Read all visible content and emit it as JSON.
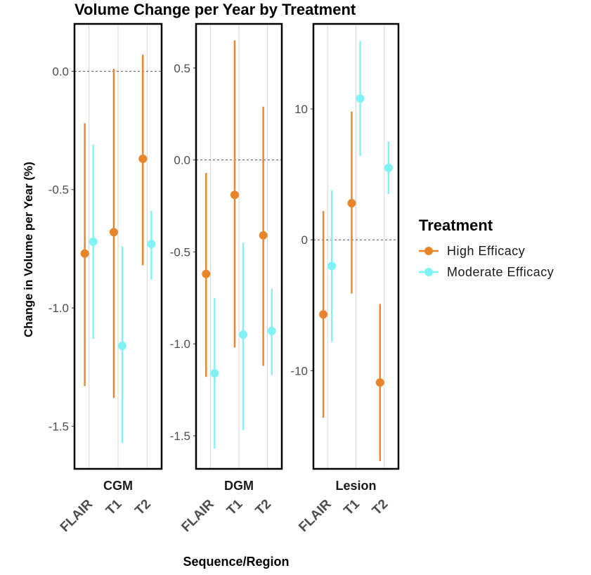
{
  "chart_data": {
    "type": "errorbar",
    "title": "Volume Change per Year by Treatment",
    "xlabel": "Sequence/Region",
    "ylabel": "Change in Volume per Year (%)",
    "sequences": [
      "FLAIR",
      "T1",
      "T2"
    ],
    "legend": {
      "title": "Treatment",
      "position": "right",
      "entries": [
        {
          "name": "High  Efficacy",
          "color": "#e8842a"
        },
        {
          "name": "Moderate  Efficacy",
          "color": "#7ff2f5"
        }
      ]
    },
    "panels": [
      {
        "region": "CGM",
        "ylim": [
          -1.68,
          0.2
        ],
        "yticks": [
          0.0,
          -0.5,
          -1.0,
          -1.5
        ],
        "ytick_labels": [
          "0.0",
          "-0.5",
          "-1.0",
          "-1.5"
        ],
        "series": [
          {
            "name": "High  Efficacy",
            "points": [
              {
                "x": "FLAIR",
                "estimate": -0.77,
                "lower": -1.33,
                "upper": -0.22
              },
              {
                "x": "T1",
                "estimate": -0.68,
                "lower": -1.38,
                "upper": 0.01
              },
              {
                "x": "T2",
                "estimate": -0.37,
                "lower": -0.82,
                "upper": 0.07
              }
            ]
          },
          {
            "name": "Moderate  Efficacy",
            "points": [
              {
                "x": "FLAIR",
                "estimate": -0.72,
                "lower": -1.13,
                "upper": -0.31
              },
              {
                "x": "T1",
                "estimate": -1.16,
                "lower": -1.57,
                "upper": -0.74
              },
              {
                "x": "T2",
                "estimate": -0.73,
                "lower": -0.88,
                "upper": -0.59
              }
            ]
          }
        ]
      },
      {
        "region": "DGM",
        "ylim": [
          -1.68,
          0.74
        ],
        "yticks": [
          0.5,
          0.0,
          -0.5,
          -1.0,
          -1.5
        ],
        "ytick_labels": [
          "0.5",
          "0.0",
          "-0.5",
          "-1.0",
          "-1.5"
        ],
        "series": [
          {
            "name": "High  Efficacy",
            "points": [
              {
                "x": "FLAIR",
                "estimate": -0.62,
                "lower": -1.18,
                "upper": -0.07
              },
              {
                "x": "T1",
                "estimate": -0.19,
                "lower": -1.02,
                "upper": 0.65
              },
              {
                "x": "T2",
                "estimate": -0.41,
                "lower": -1.12,
                "upper": 0.29
              }
            ]
          },
          {
            "name": "Moderate  Efficacy",
            "points": [
              {
                "x": "FLAIR",
                "estimate": -1.16,
                "lower": -1.57,
                "upper": -0.75
              },
              {
                "x": "T1",
                "estimate": -0.95,
                "lower": -1.47,
                "upper": -0.45
              },
              {
                "x": "T2",
                "estimate": -0.93,
                "lower": -1.17,
                "upper": -0.7
              }
            ]
          }
        ]
      },
      {
        "region": "Lesion",
        "ylim": [
          -17.5,
          16.5
        ],
        "yticks": [
          10,
          0,
          -10
        ],
        "ytick_labels": [
          "10",
          "0",
          "-10"
        ],
        "series": [
          {
            "name": "High  Efficacy",
            "points": [
              {
                "x": "FLAIR",
                "estimate": -5.7,
                "lower": -13.6,
                "upper": 2.2
              },
              {
                "x": "T1",
                "estimate": 2.8,
                "lower": -4.1,
                "upper": 9.8
              },
              {
                "x": "T2",
                "estimate": -10.9,
                "lower": -16.9,
                "upper": -4.9
              }
            ]
          },
          {
            "name": "Moderate  Efficacy",
            "points": [
              {
                "x": "FLAIR",
                "estimate": -2.0,
                "lower": -7.8,
                "upper": 3.8
              },
              {
                "x": "T1",
                "estimate": 10.8,
                "lower": 6.4,
                "upper": 15.2
              },
              {
                "x": "T2",
                "estimate": 5.5,
                "lower": 3.5,
                "upper": 7.5
              }
            ]
          }
        ]
      }
    ]
  }
}
